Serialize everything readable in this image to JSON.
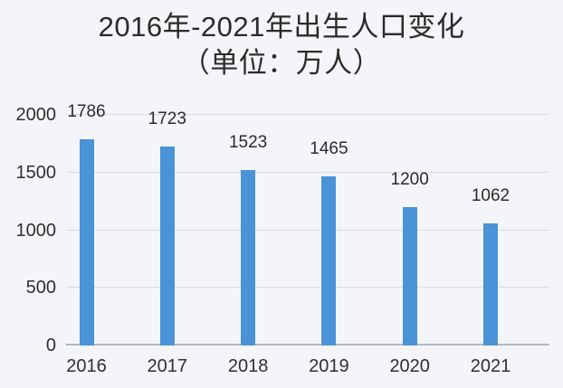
{
  "title": {
    "line1": "2016年-2021年出生人口变化",
    "line2": "（单位：万人）"
  },
  "colors": {
    "background": "#f3f5f8",
    "bar": "#4a93d6",
    "grid": "#d8dbdf",
    "axis": "#b3b8be",
    "text": "#2b2b2b"
  },
  "chart_data": {
    "type": "bar",
    "title": "2016年-2021年出生人口变化（单位：万人）",
    "categories": [
      "2016",
      "2017",
      "2018",
      "2019",
      "2020",
      "2021"
    ],
    "values": [
      1786,
      1723,
      1523,
      1465,
      1200,
      1062
    ],
    "xlabel": "",
    "ylabel": "",
    "ylim": [
      0,
      2000
    ],
    "yticks": [
      0,
      500,
      1000,
      1500,
      2000
    ],
    "grid": true,
    "legend": false,
    "data_labels": true
  }
}
